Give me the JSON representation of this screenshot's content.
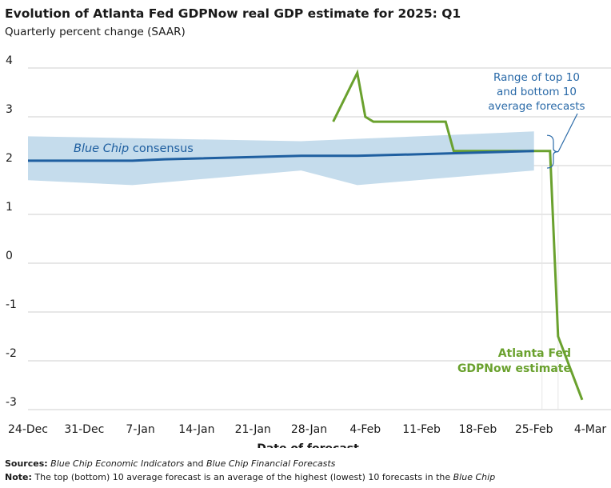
{
  "header": {
    "title": "Evolution of Atlanta Fed GDPNow real GDP estimate for 2025: Q1",
    "subtitle": "Quarterly percent change (SAAR)"
  },
  "chart_data": {
    "type": "line",
    "title": "Evolution of Atlanta Fed GDPNow real GDP estimate for 2025: Q1",
    "subtitle": "Quarterly percent change (SAAR)",
    "xlabel": "Date of forecast",
    "ylabel": "",
    "x_ticks": [
      "24-Dec",
      "31-Dec",
      "7-Jan",
      "14-Jan",
      "21-Jan",
      "28-Jan",
      "4-Feb",
      "11-Feb",
      "18-Feb",
      "25-Feb",
      "4-Mar"
    ],
    "x_tick_dates": [
      "2024-12-24",
      "2024-12-31",
      "2025-01-07",
      "2025-01-14",
      "2025-01-21",
      "2025-01-28",
      "2025-02-04",
      "2025-02-11",
      "2025-02-18",
      "2025-02-25",
      "2025-03-04"
    ],
    "xlim": [
      "2024-12-24",
      "2025-03-04"
    ],
    "ylim": [
      -3,
      4
    ],
    "y_ticks": [
      -3,
      -2,
      -1,
      0,
      1,
      2,
      3,
      4
    ],
    "grid": true,
    "series": [
      {
        "name": "Atlanta Fed GDPNow estimate",
        "color": "#6aa12e",
        "points": [
          [
            "2025-01-31",
            2.9
          ],
          [
            "2025-02-03",
            3.9
          ],
          [
            "2025-02-04",
            3.0
          ],
          [
            "2025-02-05",
            2.9
          ],
          [
            "2025-02-13",
            2.9
          ],
          [
            "2025-02-14",
            2.9
          ],
          [
            "2025-02-15",
            2.3
          ],
          [
            "2025-02-26",
            2.3
          ],
          [
            "2025-02-27",
            2.3
          ],
          [
            "2025-02-28",
            -1.5
          ],
          [
            "2025-03-03",
            -2.8
          ]
        ]
      },
      {
        "name": "Blue Chip consensus",
        "color": "#1f5fa0",
        "points": [
          [
            "2024-12-24",
            2.1
          ],
          [
            "2025-01-06",
            2.1
          ],
          [
            "2025-01-10",
            2.13
          ],
          [
            "2025-01-27",
            2.2
          ],
          [
            "2025-02-03",
            2.2
          ],
          [
            "2025-02-10",
            2.23
          ],
          [
            "2025-02-25",
            2.3
          ]
        ]
      },
      {
        "name": "Range of top 10 and bottom 10 average forecasts",
        "type": "area_band",
        "color": "#c5dcec",
        "upper": [
          [
            "2024-12-24",
            2.6
          ],
          [
            "2025-01-27",
            2.5
          ],
          [
            "2025-02-25",
            2.7
          ]
        ],
        "lower": [
          [
            "2024-12-24",
            1.7
          ],
          [
            "2025-01-06",
            1.6
          ],
          [
            "2025-01-27",
            1.9
          ],
          [
            "2025-02-03",
            1.6
          ],
          [
            "2025-02-25",
            1.9
          ]
        ]
      }
    ],
    "annotations": {
      "blue_chip_label": [
        "Blue Chip",
        "consensus"
      ],
      "range_label": [
        "Range of top 10",
        "and bottom 10",
        "average forecasts"
      ],
      "gdpnow_label": [
        "Atlanta Fed",
        "GDPNow estimate"
      ]
    }
  },
  "footer": {
    "sources_label": "Sources:",
    "sources_part1": "Blue Chip Economic Indicators",
    "sources_and": " and ",
    "sources_part2": "Blue Chip Financial Forecasts",
    "note_label": "Note:",
    "note_text": " The top (bottom) 10 average forecast is an average of the highest (lowest) 10 forecasts in the ",
    "note_italic": "Blue Chip"
  },
  "colors": {
    "gdpnow": "#6aa12e",
    "blue_chip": "#1f5fa0",
    "band": "#c5dcec",
    "range_label": "#2a6aa8",
    "gridline": "#cfcfcf"
  }
}
